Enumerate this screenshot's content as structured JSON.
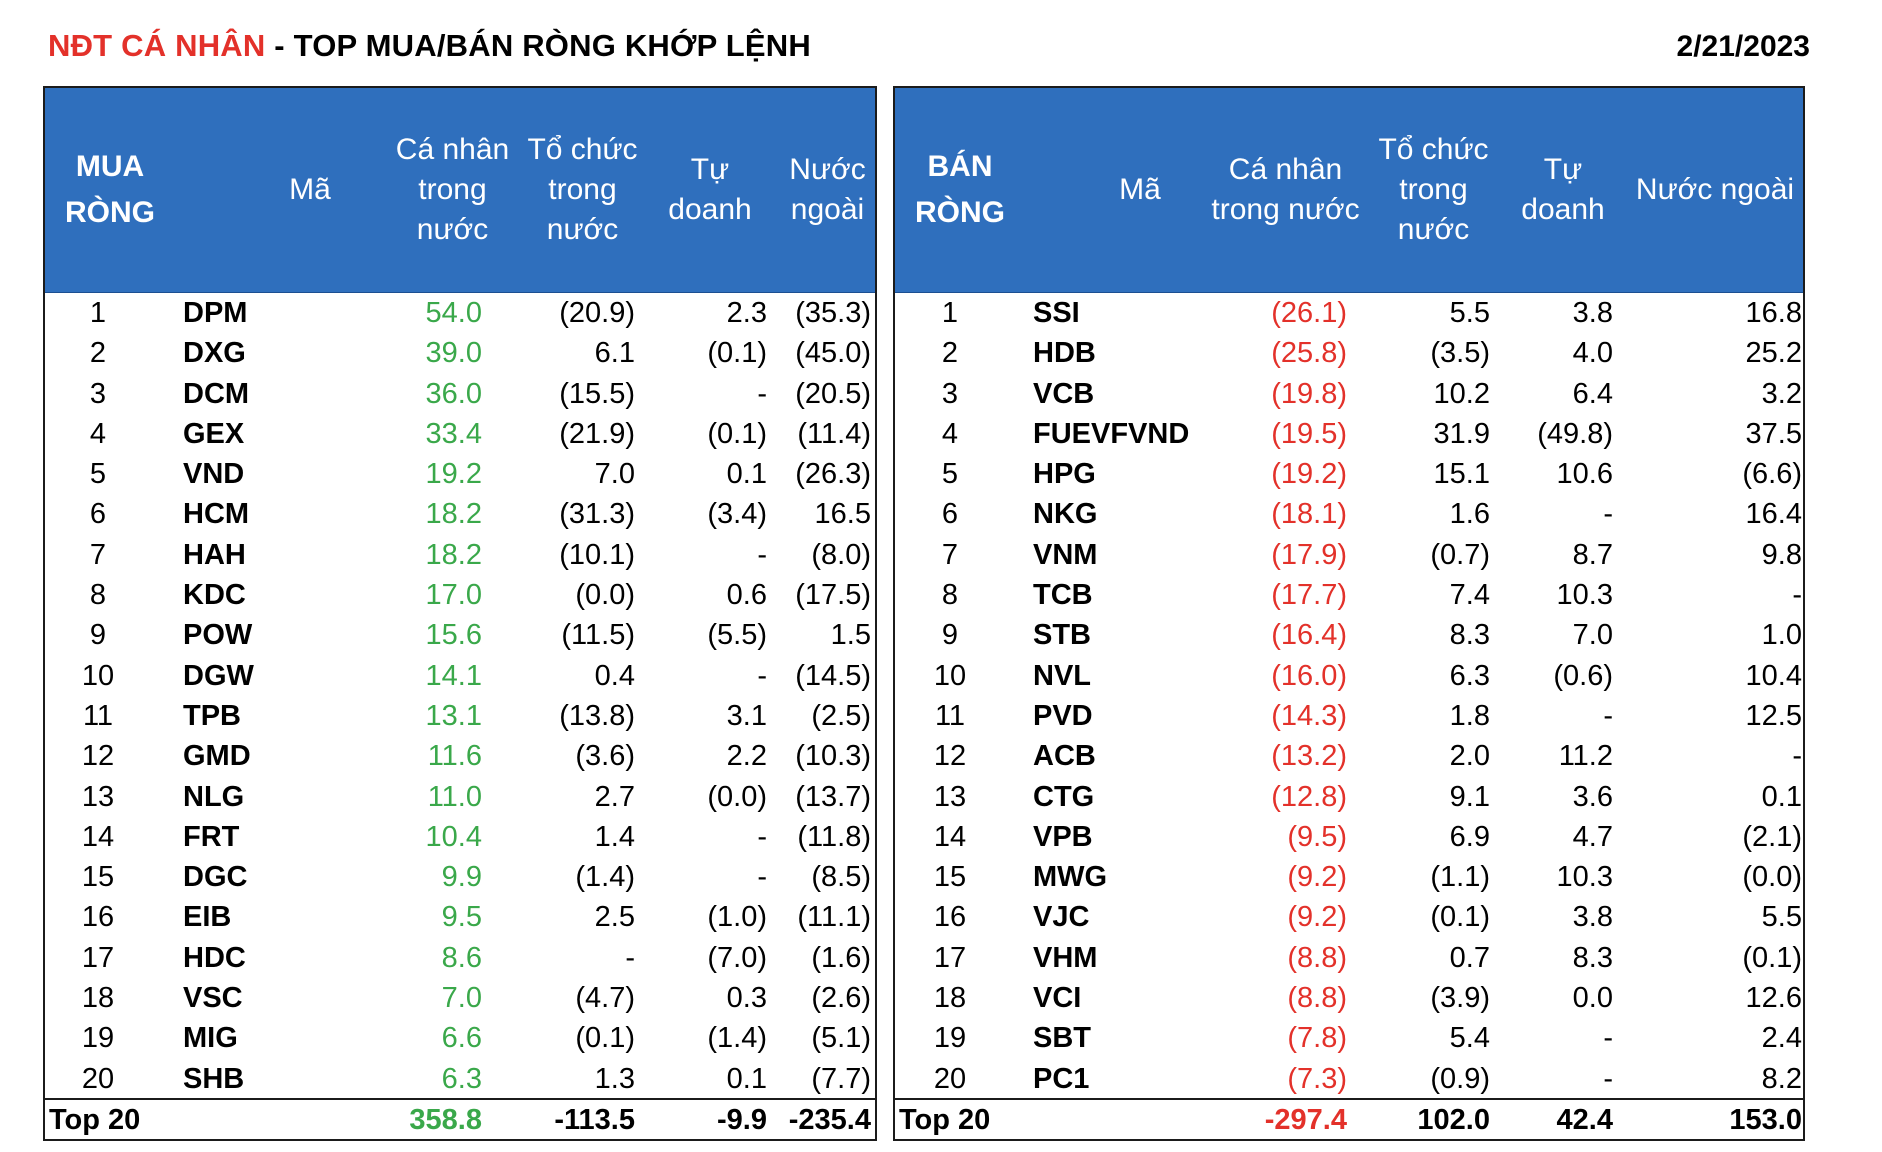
{
  "header": {
    "title_red": "NĐT CÁ NHÂN",
    "title_rest": " - TOP MUA/BÁN RÒNG KHỚP LỆNH",
    "date": "2/21/2023"
  },
  "colors": {
    "header_bg": "#2f6fbd",
    "title_red": "#e3312a",
    "positive_green": "#3aa84a",
    "negative_red": "#e3312a"
  },
  "buy": {
    "headers": {
      "group": [
        "MUA",
        "RÒNG"
      ],
      "code": "Mã",
      "individual": [
        "Cá nhân",
        "trong",
        "nước"
      ],
      "institution": [
        "Tổ chức",
        "trong",
        "nước"
      ],
      "proprietary": [
        "Tự",
        "doanh"
      ],
      "foreign": [
        "Nước",
        "ngoài"
      ]
    },
    "rows": [
      [
        "1",
        "DPM",
        "54.0",
        "(20.9)",
        "2.3",
        "(35.3)"
      ],
      [
        "2",
        "DXG",
        "39.0",
        "6.1",
        "(0.1)",
        "(45.0)"
      ],
      [
        "3",
        "DCM",
        "36.0",
        "(15.5)",
        "-",
        "(20.5)"
      ],
      [
        "4",
        "GEX",
        "33.4",
        "(21.9)",
        "(0.1)",
        "(11.4)"
      ],
      [
        "5",
        "VND",
        "19.2",
        "7.0",
        "0.1",
        "(26.3)"
      ],
      [
        "6",
        "HCM",
        "18.2",
        "(31.3)",
        "(3.4)",
        "16.5"
      ],
      [
        "7",
        "HAH",
        "18.2",
        "(10.1)",
        "-",
        "(8.0)"
      ],
      [
        "8",
        "KDC",
        "17.0",
        "(0.0)",
        "0.6",
        "(17.5)"
      ],
      [
        "9",
        "POW",
        "15.6",
        "(11.5)",
        "(5.5)",
        "1.5"
      ],
      [
        "10",
        "DGW",
        "14.1",
        "0.4",
        "-",
        "(14.5)"
      ],
      [
        "11",
        "TPB",
        "13.1",
        "(13.8)",
        "3.1",
        "(2.5)"
      ],
      [
        "12",
        "GMD",
        "11.6",
        "(3.6)",
        "2.2",
        "(10.3)"
      ],
      [
        "13",
        "NLG",
        "11.0",
        "2.7",
        "(0.0)",
        "(13.7)"
      ],
      [
        "14",
        "FRT",
        "10.4",
        "1.4",
        "-",
        "(11.8)"
      ],
      [
        "15",
        "DGC",
        "9.9",
        "(1.4)",
        "-",
        "(8.5)"
      ],
      [
        "16",
        "EIB",
        "9.5",
        "2.5",
        "(1.0)",
        "(11.1)"
      ],
      [
        "17",
        "HDC",
        "8.6",
        "-",
        "(7.0)",
        "(1.6)"
      ],
      [
        "18",
        "VSC",
        "7.0",
        "(4.7)",
        "0.3",
        "(2.6)"
      ],
      [
        "19",
        "MIG",
        "6.6",
        "(0.1)",
        "(1.4)",
        "(5.1)"
      ],
      [
        "20",
        "SHB",
        "6.3",
        "1.3",
        "0.1",
        "(7.7)"
      ]
    ],
    "total": {
      "label": "Top 20",
      "individual": "358.8",
      "institution": "-113.5",
      "proprietary": "-9.9",
      "foreign": "-235.4"
    }
  },
  "sell": {
    "headers": {
      "group": [
        "BÁN",
        "RÒNG"
      ],
      "code": "Mã",
      "individual": [
        "Cá nhân",
        "trong nước"
      ],
      "institution": [
        "Tổ chức",
        "trong",
        "nước"
      ],
      "proprietary": [
        "Tự doanh"
      ],
      "foreign": [
        "Nước ngoài"
      ]
    },
    "rows": [
      [
        "1",
        "SSI",
        "(26.1)",
        "5.5",
        "3.8",
        "16.8"
      ],
      [
        "2",
        "HDB",
        "(25.8)",
        "(3.5)",
        "4.0",
        "25.2"
      ],
      [
        "3",
        "VCB",
        "(19.8)",
        "10.2",
        "6.4",
        "3.2"
      ],
      [
        "4",
        "FUEVFVND",
        "(19.5)",
        "31.9",
        "(49.8)",
        "37.5"
      ],
      [
        "5",
        "HPG",
        "(19.2)",
        "15.1",
        "10.6",
        "(6.6)"
      ],
      [
        "6",
        "NKG",
        "(18.1)",
        "1.6",
        "-",
        "16.4"
      ],
      [
        "7",
        "VNM",
        "(17.9)",
        "(0.7)",
        "8.7",
        "9.8"
      ],
      [
        "8",
        "TCB",
        "(17.7)",
        "7.4",
        "10.3",
        "-"
      ],
      [
        "9",
        "STB",
        "(16.4)",
        "8.3",
        "7.0",
        "1.0"
      ],
      [
        "10",
        "NVL",
        "(16.0)",
        "6.3",
        "(0.6)",
        "10.4"
      ],
      [
        "11",
        "PVD",
        "(14.3)",
        "1.8",
        "-",
        "12.5"
      ],
      [
        "12",
        "ACB",
        "(13.2)",
        "2.0",
        "11.2",
        "-"
      ],
      [
        "13",
        "CTG",
        "(12.8)",
        "9.1",
        "3.6",
        "0.1"
      ],
      [
        "14",
        "VPB",
        "(9.5)",
        "6.9",
        "4.7",
        "(2.1)"
      ],
      [
        "15",
        "MWG",
        "(9.2)",
        "(1.1)",
        "10.3",
        "(0.0)"
      ],
      [
        "16",
        "VJC",
        "(9.2)",
        "(0.1)",
        "3.8",
        "5.5"
      ],
      [
        "17",
        "VHM",
        "(8.8)",
        "0.7",
        "8.3",
        "(0.1)"
      ],
      [
        "18",
        "VCI",
        "(8.8)",
        "(3.9)",
        "0.0",
        "12.6"
      ],
      [
        "19",
        "SBT",
        "(7.8)",
        "5.4",
        "-",
        "2.4"
      ],
      [
        "20",
        "PC1",
        "(7.3)",
        "(0.9)",
        "-",
        "8.2"
      ]
    ],
    "total": {
      "label": "Top 20",
      "individual": "-297.4",
      "institution": "102.0",
      "proprietary": "42.4",
      "foreign": "153.0"
    }
  }
}
